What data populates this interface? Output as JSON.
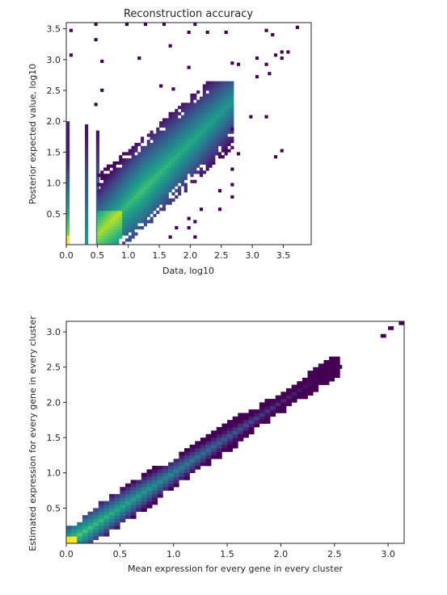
{
  "chart_data": [
    {
      "type": "heatmap",
      "title": "Reconstruction accuracy",
      "xlabel": "Data, log10",
      "ylabel": "Posterior expected value, log10",
      "xlim": [
        0,
        3.95
      ],
      "ylim": [
        0,
        3.6
      ],
      "xticks": [
        0.0,
        0.5,
        1.0,
        1.5,
        2.0,
        2.5,
        3.0,
        3.5
      ],
      "yticks": [
        0.5,
        1.0,
        1.5,
        2.0,
        2.5,
        3.0,
        3.5
      ],
      "xtick_labels": [
        "0.0",
        "0.5",
        "1.0",
        "1.5",
        "2.0",
        "2.5",
        "3.0",
        "3.5"
      ],
      "ytick_labels": [
        "0.5",
        "1.0",
        "1.5",
        "2.0",
        "2.5",
        "3.0",
        "3.5"
      ],
      "colormap": "viridis",
      "grid": false,
      "description": "2D histogram of counts; dense band along diagonal from (0.5,0) to (2.6,2.6); vertical stripes at x=0, x=0.3 and x=0.48; sparse outlier bins above.",
      "bins": {
        "x_bin_width": 0.1,
        "y_bin_width": 0.1,
        "stripes": [
          {
            "x": 0.0,
            "y_range": [
              0.0,
              2.0
            ],
            "peak_y": 0.0
          },
          {
            "x": 0.3,
            "y_range": [
              0.0,
              1.95
            ]
          },
          {
            "x": 0.48,
            "y_range": [
              0.0,
              1.85
            ]
          }
        ],
        "diagonal_core": {
          "x_range": [
            0.5,
            2.6
          ],
          "y_range": [
            0.0,
            2.65
          ]
        },
        "outliers": [
          [
            0.45,
            3.55
          ],
          [
            0.95,
            3.55
          ],
          [
            1.25,
            3.55
          ],
          [
            1.55,
            3.55
          ],
          [
            2.05,
            3.55
          ],
          [
            3.7,
            3.5
          ],
          [
            0.05,
            3.45
          ],
          [
            1.95,
            3.42
          ],
          [
            2.25,
            3.42
          ],
          [
            2.55,
            3.42
          ],
          [
            3.2,
            3.45
          ],
          [
            3.3,
            3.38
          ],
          [
            0.45,
            3.3
          ],
          [
            1.65,
            3.2
          ],
          [
            0.05,
            3.05
          ],
          [
            3.45,
            3.1
          ],
          [
            3.55,
            3.1
          ],
          [
            3.35,
            3.05
          ],
          [
            3.45,
            3.0
          ],
          [
            0.55,
            2.95
          ],
          [
            3.05,
            3.0
          ],
          [
            1.15,
            3.0
          ],
          [
            2.65,
            2.92
          ],
          [
            2.75,
            2.9
          ],
          [
            3.2,
            2.9
          ],
          [
            1.95,
            2.85
          ],
          [
            3.25,
            2.75
          ],
          [
            0.55,
            2.48
          ],
          [
            1.5,
            2.55
          ],
          [
            1.7,
            2.5
          ],
          [
            0.45,
            2.25
          ],
          [
            3.05,
            2.7
          ],
          [
            2.95,
            2.05
          ],
          [
            3.2,
            2.05
          ],
          [
            2.65,
            1.85
          ],
          [
            3.45,
            1.5
          ],
          [
            3.35,
            1.4
          ],
          [
            2.75,
            1.45
          ],
          [
            2.65,
            1.2
          ],
          [
            2.65,
            0.95
          ],
          [
            2.45,
            0.85
          ],
          [
            2.65,
            0.75
          ],
          [
            2.45,
            0.55
          ],
          [
            2.15,
            0.55
          ],
          [
            1.95,
            0.4
          ],
          [
            2.05,
            0.35
          ],
          [
            1.95,
            0.25
          ],
          [
            2.05,
            0.1
          ],
          [
            1.75,
            0.25
          ],
          [
            1.65,
            0.1
          ]
        ]
      }
    },
    {
      "type": "heatmap",
      "title": "",
      "xlabel": "Mean expression for every gene in every cluster",
      "ylabel": "Estimated expression for every gene in every cluster",
      "xlim": [
        0,
        3.15
      ],
      "ylim": [
        0,
        3.15
      ],
      "xticks": [
        0.0,
        0.5,
        1.0,
        1.5,
        2.0,
        2.5,
        3.0
      ],
      "yticks": [
        0.5,
        1.0,
        1.5,
        2.0,
        2.5,
        3.0
      ],
      "xtick_labels": [
        "0.0",
        "0.5",
        "1.0",
        "1.5",
        "2.0",
        "2.5",
        "3.0"
      ],
      "ytick_labels": [
        "0.5",
        "1.0",
        "1.5",
        "2.0",
        "2.5",
        "3.0"
      ],
      "colormap": "viridis",
      "grid": false,
      "description": "2D histogram; tight band along the identity line from (0,0) to (2.55,2.55), densest near origin; isolated bins near (2.95,2.95) and (3.1,3.1).",
      "bins": {
        "x_bin_width": 0.05,
        "y_bin_width": 0.05,
        "band": {
          "x_range": [
            0.0,
            2.55
          ],
          "slope": 1.0,
          "peak": [
            0.0,
            0.0
          ]
        },
        "outliers": [
          [
            2.93,
            2.92
          ],
          [
            3.0,
            3.03
          ],
          [
            3.1,
            3.1
          ],
          [
            2.42,
            2.55
          ],
          [
            2.52,
            2.48
          ]
        ]
      }
    }
  ]
}
